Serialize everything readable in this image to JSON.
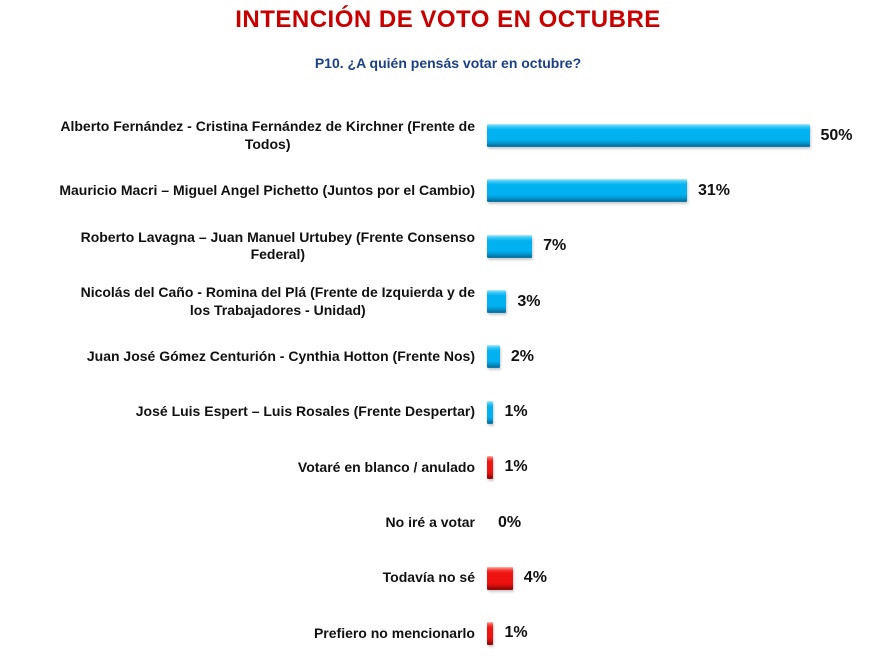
{
  "title": "INTENCIÓN DE VOTO EN OCTUBRE",
  "subtitle": "P10. ¿A quién pensás votar en octubre?",
  "colors": {
    "title": "#c80000",
    "subtitle": "#1b4084",
    "bar_blue": "#00b2f0",
    "bar_red": "#ee1412",
    "text": "#111111",
    "background": "#ffffff"
  },
  "chart_data": {
    "type": "bar",
    "orientation": "horizontal",
    "unit": "%",
    "title": "INTENCIÓN DE VOTO EN OCTUBRE",
    "subtitle": "P10. ¿A quién pensás votar en octubre?",
    "xlabel": "",
    "ylabel": "",
    "xlim": [
      0,
      50
    ],
    "grid": false,
    "legend": false,
    "categories": [
      "Alberto Fernández - Cristina Fernández de Kirchner (Frente de Todos)",
      "Mauricio Macri – Miguel Angel Pichetto (Juntos por el Cambio)",
      "Roberto Lavagna – Juan Manuel Urtubey (Frente Consenso Federal)",
      "Nicolás del Caño - Romina del Plá (Frente de Izquierda y de los Trabajadores - Unidad)",
      "Juan José Gómez Centurión - Cynthia Hotton (Frente Nos)",
      "José Luis Espert – Luis Rosales (Frente Despertar)",
      "Votaré en blanco / anulado",
      "No iré a votar",
      "Todavía no sé",
      "Prefiero no mencionarlo"
    ],
    "label_lines": [
      [
        "Alberto Fernández - Cristina Fernández de Kirchner (Frente de",
        "Todos)"
      ],
      [
        "Mauricio Macri – Miguel Angel Pichetto (Juntos por el Cambio)"
      ],
      [
        "Roberto Lavagna – Juan Manuel Urtubey (Frente Consenso",
        "Federal)"
      ],
      [
        "Nicolás del Caño - Romina del Plá (Frente de Izquierda y de",
        "los Trabajadores - Unidad)"
      ],
      [
        "Juan José Gómez Centurión - Cynthia Hotton (Frente Nos)"
      ],
      [
        "José Luis Espert – Luis Rosales (Frente Despertar)"
      ],
      [
        "Votaré en blanco / anulado"
      ],
      [
        "No iré a votar"
      ],
      [
        "Todavía no sé"
      ],
      [
        "Prefiero no mencionarlo"
      ]
    ],
    "values": [
      50,
      31,
      7,
      3,
      2,
      1,
      1,
      0,
      4,
      1
    ],
    "value_labels": [
      "50%",
      "31%",
      "7%",
      "3%",
      "2%",
      "1%",
      "1%",
      "0%",
      "4%",
      "1%"
    ],
    "bar_colors": [
      "blue",
      "blue",
      "blue",
      "blue",
      "blue",
      "blue",
      "red",
      "none",
      "red",
      "red"
    ]
  }
}
